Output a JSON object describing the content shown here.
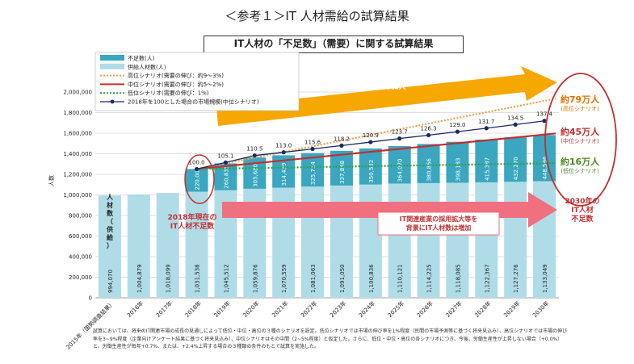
{
  "page": {
    "title": "＜参考１＞IT 人材需給の試算結果",
    "subtitle": "IT人材の「不足数」（需要）に関する試算結果",
    "footnote": "試算においては、将来のIT関連市場の成長の見通しによって低位・中位・高位の３種のシナリオを設定。低位シナリオでは市場の伸び率を1%程度（民間の市場予測等に基づく将来見込み）、高位シナリオでは市場の伸び率を3~9%程度（企業向けアンケート結果に基づく将来見込み）、中位シナリオはその中間（2~5%程度）と仮定した。さらに、低位・中位・高位の各シナリオにつき、今後、労働生産性が上昇しない場合（+0.0%）と、労働生産性が毎年+0.7%、または、+2.4%上昇する場合の３種類の条件のもとで試算を実施した。"
  },
  "annotations": {
    "orange_arrow": "ITニーズの拡大により\nIT関連市場規模は\n今後も拡大",
    "pink_arrow": "IT関連産業の採用拡大等を\n背景にIT人材数は増加",
    "shortage_2018": "2018年現在の\nIT人材不足数",
    "shortage_2030": "2030年の\nIT人材\n不足数",
    "high_total": "約79万人",
    "high_label": "(高位シナリオ)",
    "mid_total": "約45万人",
    "mid_label": "(中位シナリオ)",
    "low_total": "約16万人",
    "low_label": "(低位シナリオ)",
    "supply_vertical": "人材数（供給）"
  },
  "colors": {
    "shortage": "#3aa6bf",
    "supply": "#b0dce8",
    "high": "#f0a050",
    "mid": "#c03030",
    "low": "#30a040",
    "market": "#1a2a60",
    "orange_arrow": "#f6a800",
    "pink_arrow": "#f07080",
    "circle": "#c03030",
    "high_text": "#e07000",
    "mid_text": "#c03030",
    "low_text": "#4a8a20"
  },
  "chart_data": {
    "type": "bar",
    "ylabel": "人数",
    "ylim": [
      0,
      2000000
    ],
    "yticks": [
      "0",
      "200,000",
      "400,000",
      "600,000",
      "800,000",
      "1,000,000",
      "1,200,000",
      "1,400,000",
      "1,600,000",
      "1,800,000",
      "2,000,000"
    ],
    "categories": [
      "2015年（国勢調査結果）",
      "2016年",
      "2017年",
      "2018年",
      "2019年",
      "2020年",
      "2021年",
      "2022年",
      "2023年",
      "2024年",
      "2025年",
      "2026年",
      "2027年",
      "2028年",
      "2029年",
      "2030年"
    ],
    "legend": [
      "不足数(人)",
      "供給人材数(人)",
      "高位シナリオ(需要の伸び：約9～3%)",
      "中位シナリオ(需要の伸び：約5～2%)",
      "低位シナリオ(需要の伸び：1%)",
      "2018年を100とした場合の市場規模(中位シナリオ)"
    ],
    "supply": [
      994070,
      1004879,
      1018099,
      1031538,
      1045512,
      1059876,
      1070559,
      1081063,
      1091050,
      1100836,
      1110121,
      1114225,
      1118085,
      1122367,
      1127276,
      1133049
    ],
    "supply_labels": [
      "994,070",
      "1,004,879",
      "1,018,099",
      "1,031,538",
      "1,045,512",
      "1,059,876",
      "1,070,559",
      "1,081,063",
      "1,091,050",
      "1,100,836",
      "1,110,121",
      "1,114,225",
      "1,118,085",
      "1,122,367",
      "1,127,276",
      "1,133,049"
    ],
    "shortage": [
      null,
      null,
      null,
      220000,
      260835,
      303680,
      314439,
      325714,
      337848,
      350532,
      364070,
      380856,
      398183,
      415387,
      432270,
      448596
    ],
    "shortage_labels": [
      null,
      null,
      null,
      "220,000",
      "260,835",
      "303,680",
      "314,439",
      "325,714",
      "337,848",
      "350,532",
      "364,070",
      "380,856",
      "398,183",
      "415,387",
      "432,270",
      "448,596"
    ],
    "market_index": [
      null,
      null,
      null,
      100.0,
      105.1,
      110.5,
      113.0,
      115.6,
      118.2,
      120.9,
      123.7,
      126.3,
      129.0,
      131.7,
      134.5,
      137.4
    ],
    "market_index_labels": [
      null,
      null,
      null,
      "100.0",
      "105.1",
      "110.5",
      "113.0",
      "115.6",
      "118.2",
      "120.9",
      "123.7",
      "126.3",
      "129.0",
      "131.7",
      "134.5",
      "137.4"
    ],
    "high_scenario": [
      null,
      null,
      null,
      1251538,
      null,
      null,
      null,
      null,
      null,
      null,
      null,
      null,
      null,
      null,
      null,
      1920000
    ],
    "mid_scenario": [
      null,
      null,
      null,
      1251538,
      null,
      null,
      null,
      null,
      null,
      null,
      null,
      null,
      null,
      null,
      null,
      1581645
    ],
    "low_scenario": [
      null,
      null,
      null,
      1251538,
      null,
      null,
      null,
      null,
      null,
      null,
      null,
      null,
      null,
      null,
      null,
      1293000
    ]
  }
}
